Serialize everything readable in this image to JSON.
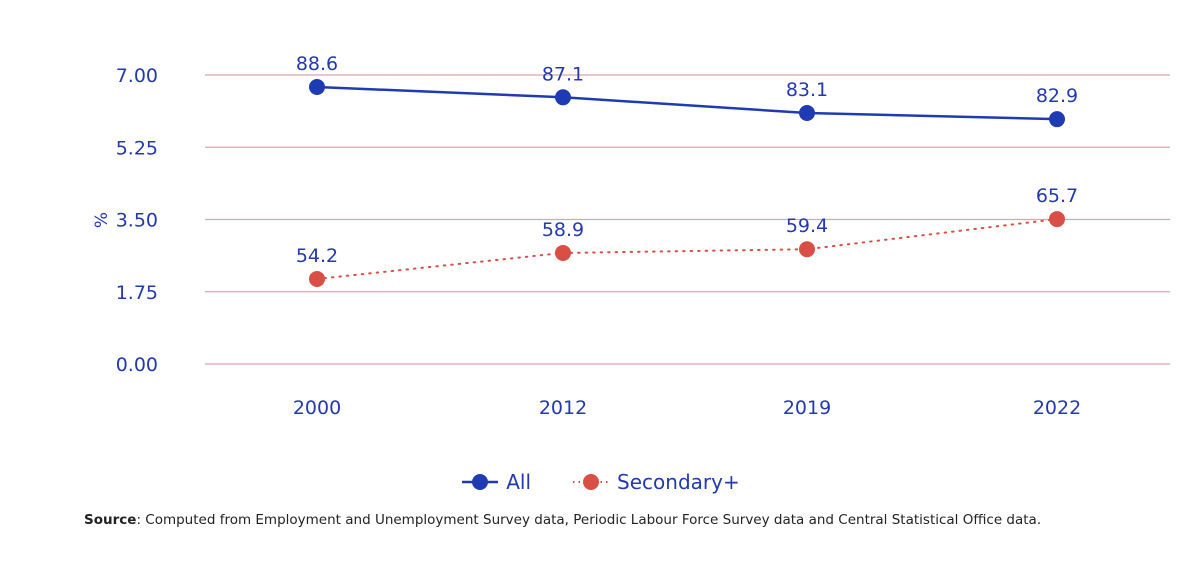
{
  "chart_data": {
    "type": "line",
    "title": "",
    "xlabel": "",
    "ylabel": "%",
    "ylim": [
      0,
      7
    ],
    "yticks": [
      "0.00",
      "1.75",
      "3.50",
      "5.25",
      "7.00"
    ],
    "ytick_values": [
      0,
      1.75,
      3.5,
      5.25,
      7
    ],
    "categories": [
      "2000",
      "2012",
      "2019",
      "2022"
    ],
    "grid": true,
    "legend_position": "bottom-center",
    "series": [
      {
        "name": "All",
        "color": "#1f3bb3",
        "line_style": "solid",
        "values": [
          6.71,
          6.46,
          6.08,
          5.93
        ],
        "data_labels": [
          "88.6",
          "87.1",
          "83.1",
          "82.9"
        ]
      },
      {
        "name": "Secondary+",
        "color": "#d94f45",
        "line_style": "dotted",
        "values": [
          2.06,
          2.69,
          2.78,
          3.51
        ],
        "data_labels": [
          "54.2",
          "58.9",
          "59.4",
          "65.7"
        ]
      }
    ]
  },
  "colors": {
    "text": "#2339b0",
    "grid": "#d9a5b0"
  },
  "source": {
    "label": "Source",
    "text": ": Computed from Employment and Unemployment Survey data, Periodic Labour Force Survey data and Central Statistical Office data."
  }
}
